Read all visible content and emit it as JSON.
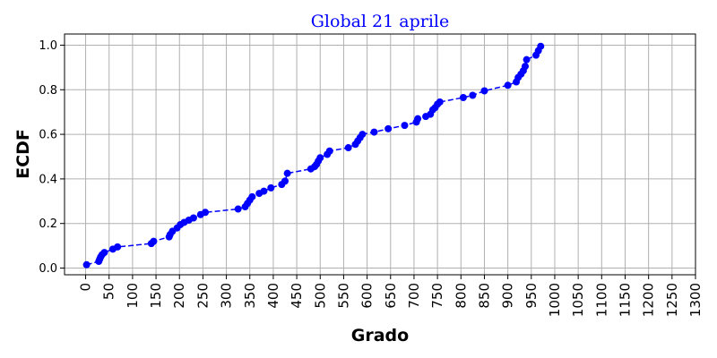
{
  "chart_data": {
    "type": "line",
    "title": "Global 21 aprile",
    "xlabel": "Grado",
    "ylabel": "ECDF",
    "xlim": [
      -45,
      1300
    ],
    "ylim": [
      -0.03,
      1.05
    ],
    "xticks": [
      0,
      50,
      100,
      150,
      200,
      250,
      300,
      350,
      400,
      450,
      500,
      550,
      600,
      650,
      700,
      750,
      800,
      850,
      900,
      950,
      1000,
      1050,
      1100,
      1150,
      1200,
      1250,
      1300
    ],
    "yticks": [
      0.0,
      0.2,
      0.4,
      0.6,
      0.8,
      1.0
    ],
    "ytick_labels": [
      "0.0",
      "0.2",
      "0.4",
      "0.6",
      "0.8",
      "1.0"
    ],
    "grid": true,
    "line_color": "#0000ff",
    "marker_color": "#0000ff",
    "line_style": "dashed",
    "series": [
      {
        "x": [
          2,
          28,
          30,
          32,
          35,
          40,
          58,
          68,
          140,
          145,
          178,
          180,
          185,
          195,
          202,
          210,
          220,
          230,
          245,
          255,
          325,
          340,
          345,
          350,
          355,
          370,
          380,
          395,
          418,
          425,
          430,
          480,
          488,
          492,
          496,
          500,
          515,
          520,
          560,
          575,
          580,
          585,
          590,
          615,
          645,
          680,
          705,
          708,
          725,
          735,
          740,
          745,
          750,
          755,
          805,
          825,
          850,
          900,
          918,
          922,
          928,
          933,
          937,
          940,
          960,
          965,
          970
        ],
        "y": [
          0.015,
          0.03,
          0.04,
          0.05,
          0.06,
          0.07,
          0.085,
          0.095,
          0.11,
          0.12,
          0.14,
          0.15,
          0.165,
          0.18,
          0.195,
          0.205,
          0.215,
          0.225,
          0.24,
          0.25,
          0.265,
          0.275,
          0.29,
          0.305,
          0.32,
          0.335,
          0.345,
          0.36,
          0.375,
          0.39,
          0.425,
          0.445,
          0.455,
          0.465,
          0.48,
          0.495,
          0.51,
          0.525,
          0.54,
          0.555,
          0.57,
          0.585,
          0.6,
          0.61,
          0.625,
          0.64,
          0.655,
          0.67,
          0.68,
          0.69,
          0.71,
          0.72,
          0.735,
          0.745,
          0.765,
          0.775,
          0.795,
          0.82,
          0.835,
          0.855,
          0.87,
          0.885,
          0.905,
          0.935,
          0.955,
          0.975,
          0.995
        ]
      }
    ]
  }
}
